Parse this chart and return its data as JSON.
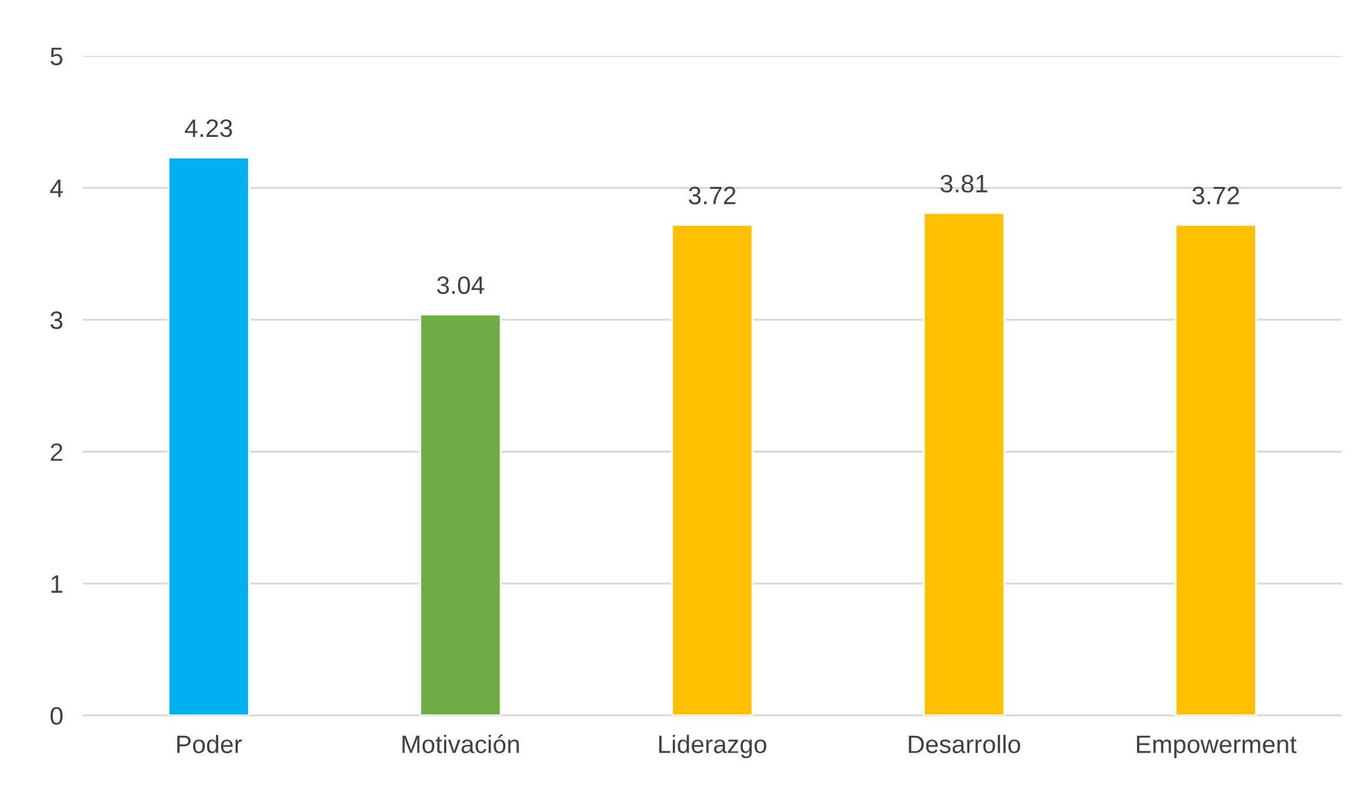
{
  "chart_data": {
    "type": "bar",
    "categories": [
      "Poder",
      "Motivación",
      "Liderazgo",
      "Desarrollo",
      "Empowerment"
    ],
    "values": [
      4.23,
      3.04,
      3.72,
      3.81,
      3.72
    ],
    "colors": [
      "#00b0f0",
      "#70ad47",
      "#ffc000",
      "#ffc000",
      "#ffc000"
    ],
    "ylim": [
      0,
      5
    ],
    "yticks": [
      0,
      1,
      2,
      3,
      4,
      5
    ],
    "grid": "y",
    "data_labels": true
  }
}
